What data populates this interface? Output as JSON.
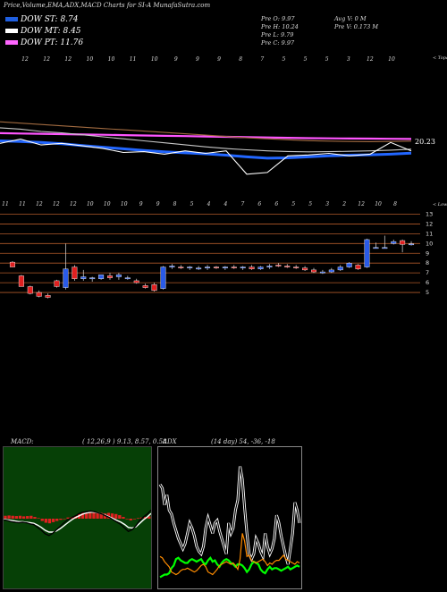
{
  "title": "Price,Volume,EMA,ADX,MACD Charts for SI-A MunafaSutra.com",
  "legend": [
    {
      "label": "DOW ST: 8.74",
      "color": "#1f5fe0"
    },
    {
      "label": "DOW MT: 8.45",
      "color": "#ffffff"
    },
    {
      "label": "DOW PT: 11.76",
      "color": "#ff66ff"
    }
  ],
  "stats": {
    "col1": [
      "Pre  O: 9.97",
      "Pre  H: 10.24",
      "Pre  L: 9.79",
      "Pre  C: 9.97"
    ],
    "col2": [
      "Avg V: 0  M",
      "Pre  V: 0.173 M"
    ]
  },
  "chart_data": [
    {
      "type": "line",
      "name": "ema-chart",
      "top_tick_labels": [
        "12",
        "12",
        "12",
        "10",
        "10",
        "11",
        "10",
        "9",
        "9",
        "9",
        "8",
        "7",
        "5",
        "5",
        "5",
        "3",
        "12",
        "10"
      ],
      "corner_label": "< Topa",
      "value_label": "20.23",
      "series": [
        {
          "name": "",
          "color": "#ff55ff",
          "values": [
            44.4,
            44.6,
            44.8,
            45.0,
            45.2,
            45.4,
            45.6,
            45.8,
            46.0,
            46.2,
            46.4,
            46.6,
            46.8,
            47.0,
            47.2,
            47.4,
            47.5,
            47.6,
            47.7,
            47.8,
            47.9
          ]
        },
        {
          "name": "",
          "color": "#a06a40",
          "values": [
            37.6,
            38.4,
            39.2,
            40.0,
            40.8,
            41.6,
            42.4,
            43.2,
            44.0,
            44.8,
            45.6,
            46.4,
            47.2,
            47.8,
            48.4,
            48.9,
            49.2,
            49.4,
            49.5,
            49.4,
            49.2
          ]
        },
        {
          "name": "",
          "color": "#c7c7c7",
          "values": [
            41.2,
            42.0,
            43.4,
            44.2,
            45.4,
            46.6,
            47.8,
            49.0,
            50.2,
            51.4,
            52.6,
            53.6,
            54.4,
            55.0,
            55.4,
            55.6,
            55.5,
            55.3,
            55.0,
            54.6,
            54.0
          ]
        },
        {
          "name": "",
          "color": "#2266ff",
          "values": [
            49.0,
            49.4,
            50.0,
            50.8,
            51.8,
            52.8,
            53.8,
            54.8,
            55.6,
            56.2,
            56.8,
            57.6,
            58.6,
            59.4,
            59.2,
            58.6,
            58.0,
            57.6,
            57.4,
            57.0,
            56.4
          ]
        },
        {
          "name": "",
          "color": "#ffffff",
          "values": [
            50.5,
            48.0,
            51.5,
            50.5,
            52.0,
            53.5,
            56.0,
            55.5,
            57.0,
            55.0,
            56.5,
            55.0,
            69.0,
            68.0,
            58.0,
            57.5,
            56.5,
            58.0,
            57.0,
            50.0,
            55.0
          ]
        }
      ]
    },
    {
      "type": "candlestick",
      "name": "price-chart",
      "top_tick_labels": [
        "11",
        "11",
        "12",
        "12",
        "12",
        "10",
        "10",
        "10",
        "9",
        "9",
        "8",
        "5",
        "4",
        "4",
        "7",
        "6",
        "6",
        "5",
        "5",
        "3",
        "2",
        "12",
        "10",
        "8"
      ],
      "corner_label": "< Lowex",
      "yticks": [
        13,
        12,
        11,
        10,
        9,
        8,
        7,
        6,
        5
      ],
      "candles": [
        {
          "o": 8.1,
          "h": 8.2,
          "l": 7.6,
          "c": 7.6
        },
        {
          "o": 6.7,
          "h": 6.8,
          "l": 5.6,
          "c": 5.6
        },
        {
          "o": 5.6,
          "h": 5.7,
          "l": 4.8,
          "c": 4.9
        },
        {
          "o": 5.0,
          "h": 5.2,
          "l": 4.5,
          "c": 4.6
        },
        {
          "o": 4.7,
          "h": 4.9,
          "l": 4.4,
          "c": 4.5
        },
        {
          "o": 6.2,
          "h": 6.3,
          "l": 5.5,
          "c": 5.6
        },
        {
          "o": 5.5,
          "h": 10.0,
          "l": 5.3,
          "c": 7.4
        },
        {
          "o": 7.6,
          "h": 7.8,
          "l": 6.2,
          "c": 6.4
        },
        {
          "o": 6.4,
          "h": 7.3,
          "l": 6.2,
          "c": 6.6
        },
        {
          "o": 6.4,
          "h": 6.6,
          "l": 6.1,
          "c": 6.5
        },
        {
          "o": 6.4,
          "h": 6.8,
          "l": 6.3,
          "c": 6.8
        },
        {
          "o": 6.7,
          "h": 7.0,
          "l": 6.3,
          "c": 6.5
        },
        {
          "o": 6.6,
          "h": 7.0,
          "l": 6.3,
          "c": 6.8
        },
        {
          "o": 6.5,
          "h": 6.7,
          "l": 6.3,
          "c": 6.5
        },
        {
          "o": 6.2,
          "h": 6.4,
          "l": 5.9,
          "c": 6.0
        },
        {
          "o": 5.7,
          "h": 5.9,
          "l": 5.4,
          "c": 5.5
        },
        {
          "o": 5.8,
          "h": 6.0,
          "l": 5.1,
          "c": 5.2
        },
        {
          "o": 5.4,
          "h": 7.7,
          "l": 5.3,
          "c": 7.6
        },
        {
          "o": 7.6,
          "h": 7.9,
          "l": 7.4,
          "c": 7.7
        },
        {
          "o": 7.6,
          "h": 7.8,
          "l": 7.4,
          "c": 7.5
        },
        {
          "o": 7.5,
          "h": 7.7,
          "l": 7.3,
          "c": 7.6
        },
        {
          "o": 7.5,
          "h": 7.7,
          "l": 7.3,
          "c": 7.5
        },
        {
          "o": 7.5,
          "h": 7.8,
          "l": 7.3,
          "c": 7.6
        },
        {
          "o": 7.6,
          "h": 7.7,
          "l": 7.4,
          "c": 7.5
        },
        {
          "o": 7.5,
          "h": 7.7,
          "l": 7.3,
          "c": 7.6
        },
        {
          "o": 7.6,
          "h": 7.8,
          "l": 7.4,
          "c": 7.5
        },
        {
          "o": 7.5,
          "h": 7.7,
          "l": 7.3,
          "c": 7.6
        },
        {
          "o": 7.6,
          "h": 7.8,
          "l": 7.3,
          "c": 7.4
        },
        {
          "o": 7.4,
          "h": 7.7,
          "l": 7.3,
          "c": 7.6
        },
        {
          "o": 7.6,
          "h": 7.9,
          "l": 7.4,
          "c": 7.7
        },
        {
          "o": 7.8,
          "h": 8.0,
          "l": 7.6,
          "c": 7.7
        },
        {
          "o": 7.7,
          "h": 7.9,
          "l": 7.5,
          "c": 7.6
        },
        {
          "o": 7.6,
          "h": 7.8,
          "l": 7.4,
          "c": 7.5
        },
        {
          "o": 7.5,
          "h": 7.7,
          "l": 7.2,
          "c": 7.3
        },
        {
          "o": 7.3,
          "h": 7.5,
          "l": 7.0,
          "c": 7.1
        },
        {
          "o": 7.1,
          "h": 7.3,
          "l": 6.9,
          "c": 7.1
        },
        {
          "o": 7.1,
          "h": 7.5,
          "l": 7.0,
          "c": 7.3
        },
        {
          "o": 7.3,
          "h": 7.8,
          "l": 7.2,
          "c": 7.6
        },
        {
          "o": 7.6,
          "h": 8.1,
          "l": 7.5,
          "c": 8.0
        },
        {
          "o": 7.8,
          "h": 7.9,
          "l": 7.3,
          "c": 7.4
        },
        {
          "o": 7.6,
          "h": 10.5,
          "l": 7.5,
          "c": 10.4
        },
        {
          "o": 9.6,
          "h": 10.1,
          "l": 9.5,
          "c": 9.6
        },
        {
          "o": 9.6,
          "h": 10.8,
          "l": 9.5,
          "c": 9.6
        },
        {
          "o": 10.0,
          "h": 10.4,
          "l": 9.9,
          "c": 10.2
        },
        {
          "o": 10.3,
          "h": 10.4,
          "l": 9.1,
          "c": 9.9
        },
        {
          "o": 9.97,
          "h": 10.24,
          "l": 9.79,
          "c": 9.97
        }
      ]
    },
    {
      "type": "bar+line",
      "name": "macd",
      "title": "MACD:",
      "params": "( 12,26,9 ) 9.13, 8.57, 0.58",
      "histogram": [
        0.5,
        0.55,
        0.5,
        0.45,
        0.5,
        0.4,
        0.45,
        0.5,
        0.3,
        0.1,
        -0.4,
        -0.7,
        -0.8,
        -0.6,
        -0.4,
        -0.2,
        0.0,
        0.2,
        0.3,
        0.5,
        0.8,
        1.0,
        1.0,
        1.1,
        1.2,
        1.1,
        1.0,
        0.9,
        1.0,
        0.9,
        0.8,
        0.6,
        0.3,
        -0.1,
        -0.3,
        -0.1,
        0.1,
        0.2,
        0.3,
        0.4
      ],
      "macd_line": [
        -0.2,
        -0.3,
        -0.5,
        -0.6,
        -0.7,
        -0.6,
        -0.7,
        -0.9,
        -1.0,
        -1.5,
        -2.0,
        -2.6,
        -2.9,
        -2.5,
        -1.9,
        -1.3,
        -0.7,
        -0.2,
        0.2,
        0.5,
        0.9,
        1.1,
        1.2,
        1.3,
        1.2,
        1.0,
        0.8,
        0.5,
        0.2,
        -0.2,
        -0.6,
        -1.0,
        -1.6,
        -2.2,
        -1.9,
        -1.2,
        -0.3,
        0.3,
        0.8,
        1.5
      ],
      "signal_line": [
        -0.1,
        -0.2,
        -0.3,
        -0.4,
        -0.5,
        -0.5,
        -0.6,
        -0.7,
        -0.8,
        -1.1,
        -1.5,
        -2.0,
        -2.3,
        -2.3,
        -2.1,
        -1.7,
        -1.2,
        -0.7,
        -0.2,
        0.2,
        0.5,
        0.8,
        1.0,
        1.1,
        1.1,
        1.0,
        0.8,
        0.6,
        0.3,
        0.0,
        -0.3,
        -0.6,
        -1.0,
        -1.5,
        -1.6,
        -1.4,
        -0.8,
        -0.2,
        0.3,
        0.9
      ]
    },
    {
      "type": "line",
      "name": "adx",
      "title": "ADX",
      "params": "(14 day) 54, -36, -18",
      "series": [
        {
          "name": "",
          "color": "#ffffff",
          "values": [
            78,
            75,
            62,
            70,
            58,
            55,
            48,
            42,
            36,
            32,
            28,
            32,
            40,
            48,
            44,
            38,
            30,
            26,
            24,
            30,
            44,
            52,
            46,
            40,
            48,
            50,
            42,
            36,
            30,
            24,
            48,
            40,
            44,
            58,
            66,
            92,
            82,
            60,
            40,
            24,
            20,
            24,
            36,
            32,
            26,
            22,
            40,
            30,
            24,
            28,
            36,
            54,
            48,
            38,
            30,
            22,
            16,
            28,
            40,
            64,
            58,
            48
          ]
        },
        {
          "name": "",
          "color": "#00ff00",
          "values": [
            6,
            7,
            8,
            8,
            9,
            13,
            15,
            20,
            21,
            19,
            18,
            17,
            17,
            19,
            20,
            19,
            18,
            19,
            20,
            17,
            16,
            19,
            21,
            18,
            19,
            16,
            14,
            17,
            19,
            20,
            19,
            17,
            16,
            14,
            16,
            16,
            15,
            13,
            10,
            12,
            16,
            18,
            17,
            16,
            12,
            10,
            9,
            12,
            14,
            12,
            13,
            13,
            12,
            11,
            12,
            13,
            14,
            12,
            13,
            14,
            15,
            14
          ]
        },
        {
          "name": "",
          "color": "#ff8c00",
          "values": [
            22,
            21,
            18,
            16,
            14,
            10,
            9,
            8,
            9,
            11,
            12,
            12,
            13,
            12,
            11,
            10,
            11,
            13,
            15,
            16,
            14,
            10,
            9,
            8,
            10,
            12,
            15,
            16,
            17,
            18,
            17,
            16,
            17,
            15,
            12,
            20,
            40,
            34,
            22,
            23,
            19,
            18,
            17,
            18,
            19,
            20,
            18,
            15,
            17,
            16,
            18,
            19,
            19,
            21,
            23,
            20,
            19,
            18,
            17,
            16,
            18,
            17
          ]
        }
      ]
    }
  ]
}
